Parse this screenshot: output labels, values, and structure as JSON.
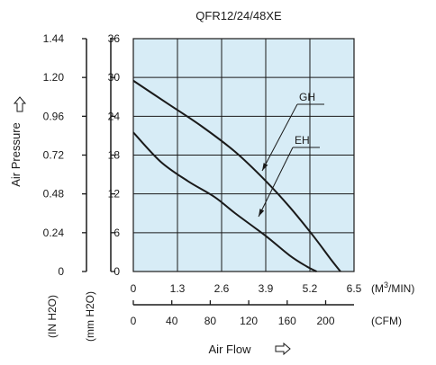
{
  "chart_data": {
    "type": "line",
    "title": "QFR12/24/48XE",
    "xlabel": "Air Flow",
    "ylabel": "Air Pressure",
    "x_ticks": [
      "0",
      "1.3",
      "2.6",
      "3.9",
      "5.2",
      "6.5"
    ],
    "x_unit": "(M3/MIN)",
    "x2_ticks": [
      "0",
      "40",
      "80",
      "120",
      "160",
      "200"
    ],
    "x2_values": [
      0,
      40,
      80,
      120,
      160,
      200
    ],
    "x2_unit": "(CFM)",
    "y_ticks": [
      "0",
      "6",
      "12",
      "18",
      "24",
      "30",
      "36"
    ],
    "y_unit": "(mm H2O)",
    "y2_ticks": [
      "0",
      "0.24",
      "0.48",
      "0.72",
      "0.96",
      "1.20",
      "1.44"
    ],
    "y2_unit": "(IN H2O)",
    "xlim": [
      0,
      6.5
    ],
    "ylim": [
      0,
      36
    ],
    "grid": true,
    "series": [
      {
        "name": "GH",
        "x": [
          0,
          1.0,
          2.0,
          3.0,
          3.9,
          4.6,
          5.3,
          5.8,
          6.1
        ],
        "y": [
          29.5,
          26.0,
          22.5,
          18.5,
          14.0,
          10.0,
          5.5,
          2.0,
          0
        ]
      },
      {
        "name": "EH",
        "x": [
          0,
          0.8,
          1.6,
          2.4,
          3.0,
          3.9,
          4.6,
          5.1,
          5.4
        ],
        "y": [
          21.5,
          17.0,
          14.0,
          11.5,
          9.0,
          5.5,
          2.5,
          0.8,
          0
        ]
      }
    ],
    "annotations": [
      "GH",
      "EH"
    ]
  }
}
